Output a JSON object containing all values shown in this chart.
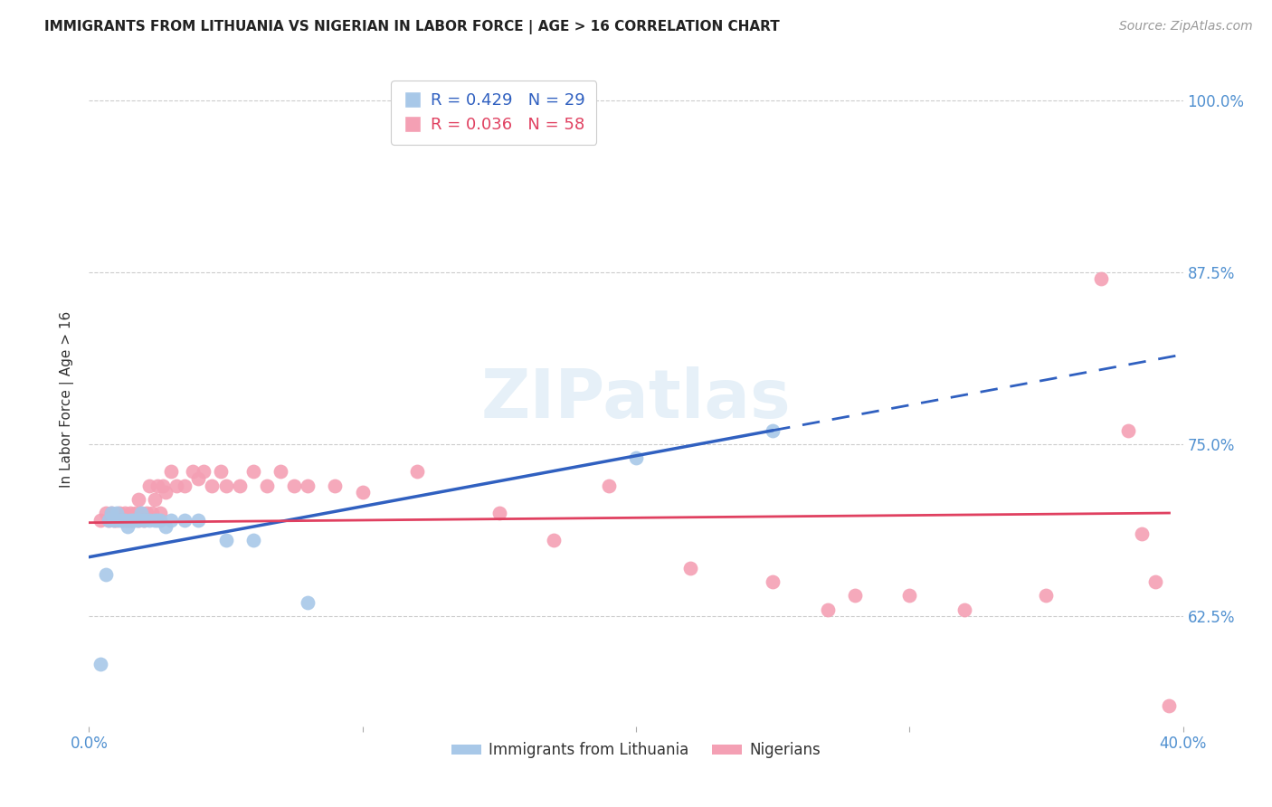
{
  "title": "IMMIGRANTS FROM LITHUANIA VS NIGERIAN IN LABOR FORCE | AGE > 16 CORRELATION CHART",
  "source": "Source: ZipAtlas.com",
  "ylabel": "In Labor Force | Age > 16",
  "ytick_labels": [
    "100.0%",
    "87.5%",
    "75.0%",
    "62.5%"
  ],
  "ytick_values": [
    1.0,
    0.875,
    0.75,
    0.625
  ],
  "xlim": [
    0.0,
    0.4
  ],
  "ylim": [
    0.545,
    1.02
  ],
  "lithuania_R": 0.429,
  "lithuania_N": 29,
  "nigerian_R": 0.036,
  "nigerian_N": 58,
  "lithuania_color": "#a8c8e8",
  "nigerian_color": "#f4a0b4",
  "lithuania_line_color": "#3060c0",
  "nigerian_line_color": "#e04060",
  "lith_x": [
    0.004,
    0.006,
    0.007,
    0.008,
    0.009,
    0.01,
    0.011,
    0.012,
    0.013,
    0.014,
    0.015,
    0.016,
    0.017,
    0.018,
    0.019,
    0.02,
    0.022,
    0.024,
    0.025,
    0.026,
    0.028,
    0.03,
    0.035,
    0.04,
    0.05,
    0.06,
    0.08,
    0.2,
    0.25
  ],
  "lith_y": [
    0.59,
    0.655,
    0.695,
    0.7,
    0.695,
    0.7,
    0.695,
    0.695,
    0.695,
    0.69,
    0.695,
    0.695,
    0.695,
    0.695,
    0.7,
    0.695,
    0.695,
    0.695,
    0.695,
    0.695,
    0.69,
    0.695,
    0.695,
    0.695,
    0.68,
    0.68,
    0.635,
    0.74,
    0.76
  ],
  "nig_x": [
    0.004,
    0.006,
    0.007,
    0.008,
    0.009,
    0.01,
    0.011,
    0.012,
    0.013,
    0.014,
    0.015,
    0.016,
    0.017,
    0.018,
    0.018,
    0.019,
    0.02,
    0.021,
    0.022,
    0.023,
    0.024,
    0.025,
    0.026,
    0.027,
    0.028,
    0.03,
    0.032,
    0.035,
    0.038,
    0.04,
    0.042,
    0.045,
    0.048,
    0.05,
    0.055,
    0.06,
    0.065,
    0.07,
    0.075,
    0.08,
    0.09,
    0.1,
    0.12,
    0.15,
    0.17,
    0.19,
    0.22,
    0.25,
    0.27,
    0.28,
    0.3,
    0.32,
    0.35,
    0.37,
    0.38,
    0.385,
    0.39,
    0.395
  ],
  "nig_y": [
    0.695,
    0.7,
    0.695,
    0.7,
    0.695,
    0.695,
    0.7,
    0.695,
    0.7,
    0.695,
    0.7,
    0.695,
    0.7,
    0.695,
    0.71,
    0.7,
    0.695,
    0.7,
    0.72,
    0.7,
    0.71,
    0.72,
    0.7,
    0.72,
    0.715,
    0.73,
    0.72,
    0.72,
    0.73,
    0.725,
    0.73,
    0.72,
    0.73,
    0.72,
    0.72,
    0.73,
    0.72,
    0.73,
    0.72,
    0.72,
    0.72,
    0.715,
    0.73,
    0.7,
    0.68,
    0.72,
    0.66,
    0.65,
    0.63,
    0.64,
    0.64,
    0.63,
    0.64,
    0.87,
    0.76,
    0.685,
    0.65,
    0.56
  ],
  "xtick_positions": [
    0.0,
    0.1,
    0.2,
    0.3,
    0.4
  ],
  "xtick_labels_show": [
    "0.0%",
    "",
    "",
    "",
    "40.0%"
  ]
}
